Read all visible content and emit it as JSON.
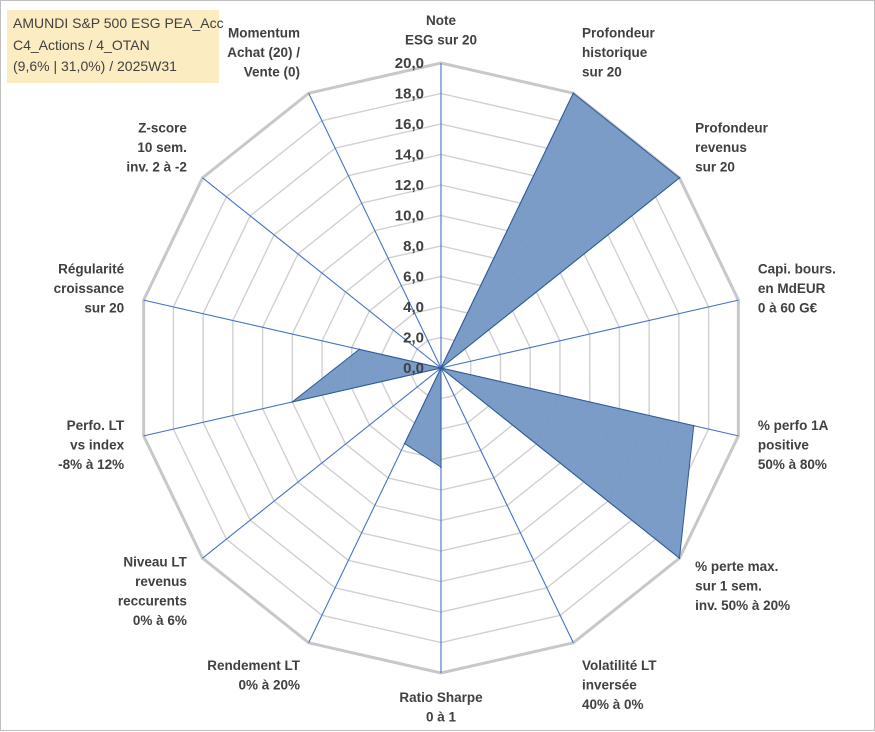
{
  "title_lines": [
    "AMUNDI S&P 500 ESG PEA_Acc",
    "C4_Actions / 4_OTAN",
    "(9,6% | 31,0%) / 2025W31"
  ],
  "chart_data": {
    "type": "radar",
    "rmin": 0,
    "rmax": 20,
    "tick_step": 2,
    "tick_labels": [
      "0,0",
      "2,0",
      "4,0",
      "6,0",
      "8,0",
      "10,0",
      "12,0",
      "14,0",
      "16,0",
      "18,0",
      "20,0"
    ],
    "grid": true,
    "colors": {
      "fill": "#7397c4",
      "stroke": "#2e5a96",
      "grid": "#d0d0d0",
      "axis": "#4472c4"
    },
    "categories": [
      [
        "Note",
        "ESG sur 20"
      ],
      [
        "Profondeur",
        "historique",
        "sur 20"
      ],
      [
        "Profondeur",
        "revenus",
        "sur 20"
      ],
      [
        "Capi. bours.",
        "en MdEUR",
        "0 à 60 G€"
      ],
      [
        "% perfo 1A",
        "positive",
        "50% à 80%"
      ],
      [
        "% perte max.",
        "sur 1 sem.",
        "inv. 50% à 20%"
      ],
      [
        "Volatilité LT",
        "inversée",
        "40% à 0%"
      ],
      [
        "Ratio Sharpe",
        "0 à 1"
      ],
      [
        "Rendement LT",
        "0% à 20%"
      ],
      [
        "Niveau LT",
        "revenus",
        "reccurents",
        "0% à 6%"
      ],
      [
        "Perfo. LT",
        "vs index",
        "-8% à 12%"
      ],
      [
        "Régularité",
        "croissance",
        "sur 20"
      ],
      [
        "Z-score",
        "10 sem.",
        "inv. 2 à -2"
      ],
      [
        "Momentum",
        "Achat (20) /",
        "Vente (0)"
      ]
    ],
    "values": [
      0,
      20,
      20,
      0,
      17,
      20,
      0,
      6.5,
      5.5,
      0,
      10,
      5.5,
      0,
      0
    ]
  }
}
